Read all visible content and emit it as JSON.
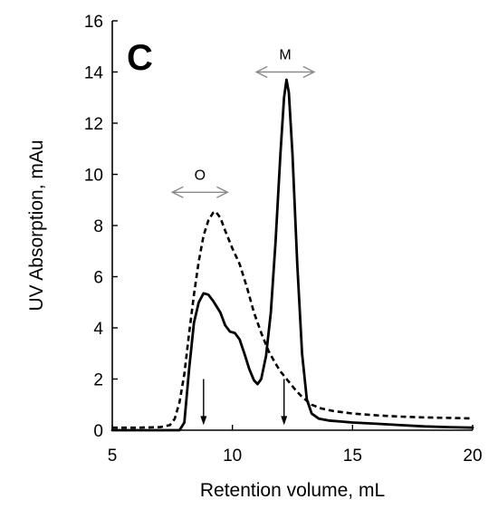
{
  "chart_data": {
    "type": "line",
    "panel_label": "C",
    "xlabel": "Retention volume, mL",
    "ylabel": "UV Absorption, mAu",
    "xlim": [
      5,
      20
    ],
    "ylim": [
      0,
      16
    ],
    "xticks": [
      5,
      10,
      15,
      20
    ],
    "yticks": [
      0,
      2,
      4,
      6,
      8,
      10,
      12,
      14,
      16
    ],
    "grid": false,
    "series": [
      {
        "style": "solid",
        "color": "#000000",
        "points": [
          [
            5.0,
            0.0
          ],
          [
            7.8,
            0.0
          ],
          [
            8.0,
            0.3
          ],
          [
            8.2,
            2.4
          ],
          [
            8.4,
            4.2
          ],
          [
            8.6,
            5.0
          ],
          [
            8.8,
            5.35
          ],
          [
            9.0,
            5.3
          ],
          [
            9.2,
            5.05
          ],
          [
            9.5,
            4.6
          ],
          [
            9.7,
            4.1
          ],
          [
            9.9,
            3.85
          ],
          [
            10.1,
            3.8
          ],
          [
            10.3,
            3.55
          ],
          [
            10.5,
            3.0
          ],
          [
            10.7,
            2.4
          ],
          [
            10.9,
            1.95
          ],
          [
            11.05,
            1.8
          ],
          [
            11.2,
            2.0
          ],
          [
            11.4,
            2.9
          ],
          [
            11.6,
            4.6
          ],
          [
            11.8,
            7.4
          ],
          [
            12.0,
            10.8
          ],
          [
            12.15,
            13.0
          ],
          [
            12.25,
            13.7
          ],
          [
            12.35,
            13.2
          ],
          [
            12.5,
            10.8
          ],
          [
            12.7,
            6.5
          ],
          [
            12.9,
            3.0
          ],
          [
            13.1,
            1.2
          ],
          [
            13.3,
            0.65
          ],
          [
            13.6,
            0.45
          ],
          [
            14.0,
            0.38
          ],
          [
            15.0,
            0.3
          ],
          [
            16.0,
            0.25
          ],
          [
            17.0,
            0.2
          ],
          [
            18.0,
            0.15
          ],
          [
            19.0,
            0.12
          ],
          [
            20.0,
            0.1
          ]
        ]
      },
      {
        "style": "dashed",
        "color": "#000000",
        "points": [
          [
            5.0,
            0.1
          ],
          [
            6.0,
            0.1
          ],
          [
            7.0,
            0.12
          ],
          [
            7.4,
            0.2
          ],
          [
            7.6,
            0.45
          ],
          [
            7.8,
            1.1
          ],
          [
            8.0,
            2.2
          ],
          [
            8.2,
            3.8
          ],
          [
            8.4,
            5.3
          ],
          [
            8.6,
            6.6
          ],
          [
            8.8,
            7.6
          ],
          [
            9.0,
            8.2
          ],
          [
            9.2,
            8.5
          ],
          [
            9.3,
            8.55
          ],
          [
            9.5,
            8.3
          ],
          [
            9.7,
            7.8
          ],
          [
            10.0,
            7.1
          ],
          [
            10.3,
            6.5
          ],
          [
            10.6,
            5.6
          ],
          [
            10.9,
            4.6
          ],
          [
            11.2,
            3.8
          ],
          [
            11.5,
            3.1
          ],
          [
            11.8,
            2.6
          ],
          [
            12.0,
            2.3
          ],
          [
            12.3,
            1.95
          ],
          [
            12.6,
            1.6
          ],
          [
            12.9,
            1.3
          ],
          [
            13.3,
            1.0
          ],
          [
            13.7,
            0.85
          ],
          [
            14.2,
            0.75
          ],
          [
            15.0,
            0.65
          ],
          [
            16.0,
            0.58
          ],
          [
            17.0,
            0.53
          ],
          [
            18.0,
            0.5
          ],
          [
            19.0,
            0.48
          ],
          [
            20.0,
            0.46
          ]
        ]
      }
    ],
    "annotations": [
      {
        "type": "range",
        "label": "O",
        "x_from": 7.5,
        "x_to": 9.8,
        "y": 9.3
      },
      {
        "type": "range",
        "label": "M",
        "x_from": 11.0,
        "x_to": 13.4,
        "y": 14.0
      },
      {
        "type": "down-arrow",
        "x": 8.8,
        "y_from": 2.0,
        "y_to": 0.2
      },
      {
        "type": "down-arrow",
        "x": 12.15,
        "y_from": 2.0,
        "y_to": 0.2
      }
    ]
  }
}
